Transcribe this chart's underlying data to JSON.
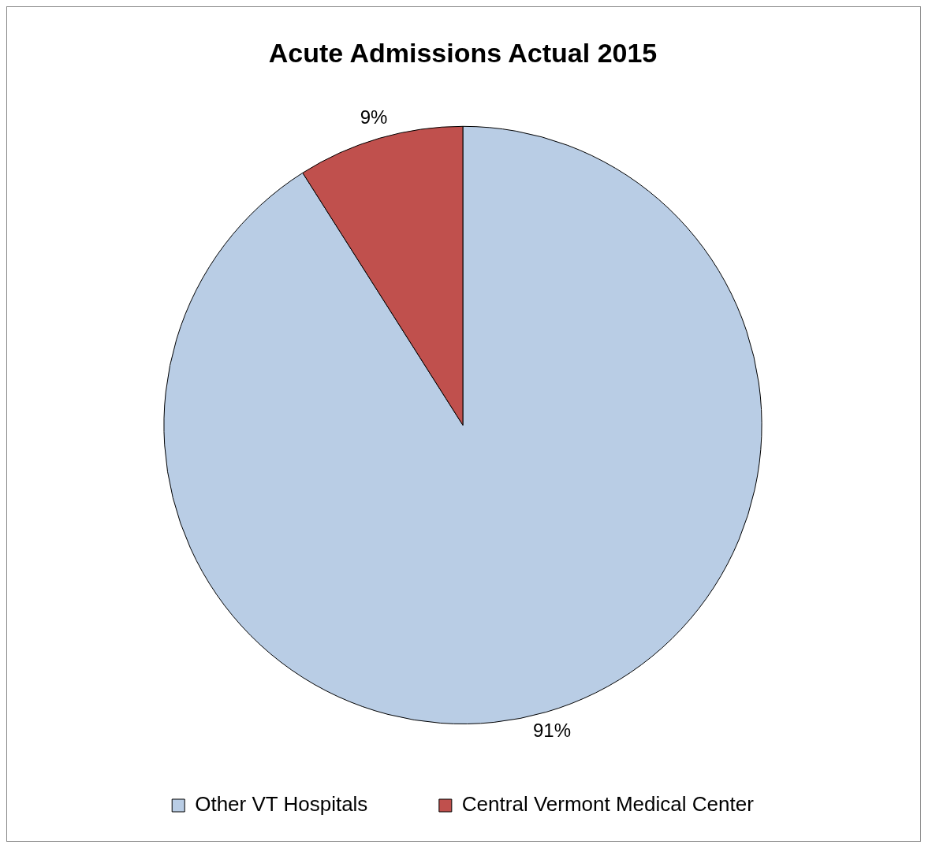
{
  "chart_data": {
    "type": "pie",
    "title": "Acute Admissions Actual 2015",
    "categories": [
      "Other VT Hospitals",
      "Central Vermont Medical Center"
    ],
    "values": [
      91,
      9
    ],
    "colors": [
      "#b9cde5",
      "#c0504d"
    ],
    "value_labels": [
      "91%",
      "9%"
    ],
    "legend": "bottom"
  }
}
